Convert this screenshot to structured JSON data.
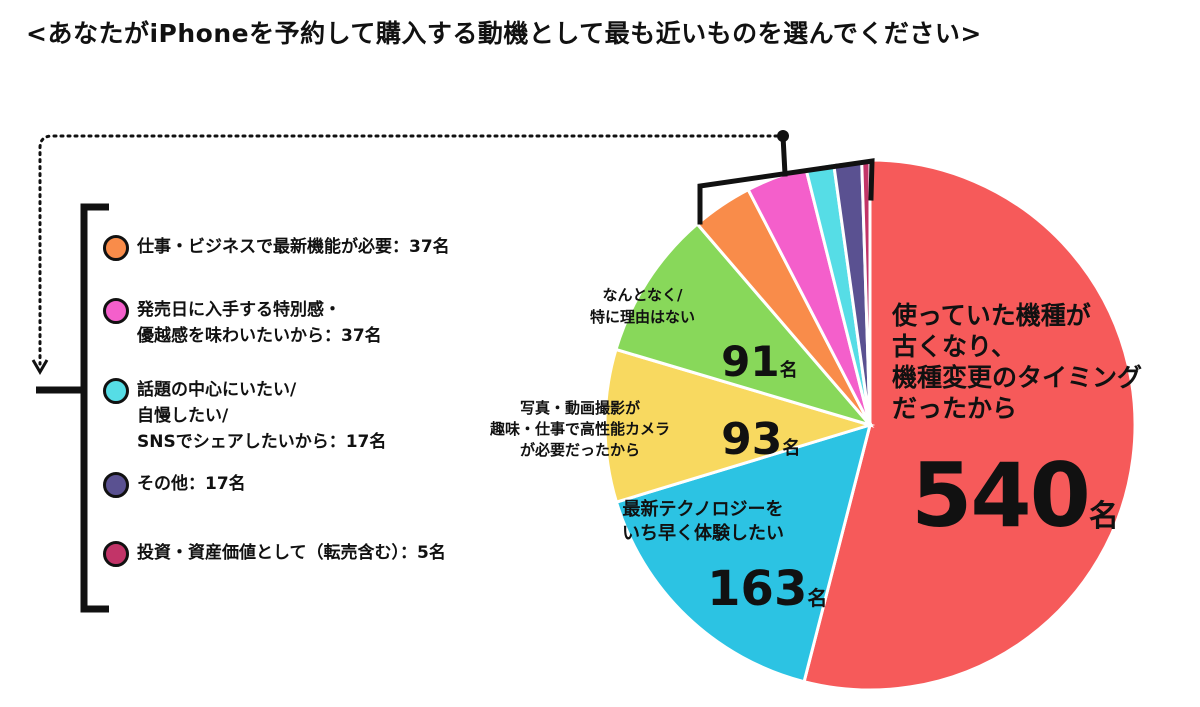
{
  "title": "<あなたがiPhoneを予約して購入する動機として最も近いものを選んでください>",
  "chart_data": {
    "type": "pie",
    "title": "<あなたがiPhoneを予約して購入する動機として最も近いものを選んでください>",
    "unit": "名",
    "slices": [
      {
        "label": "使っていた機種が古くなり、機種変更のタイミングだったから",
        "value": 540,
        "color": "#f65a5a"
      },
      {
        "label": "最新テクノロジーをいち早く体験したい",
        "value": 163,
        "color": "#2cc3e3"
      },
      {
        "label": "写真・動画撮影が趣味・仕事で高性能カメラが必要だったから",
        "value": 93,
        "color": "#f8d960"
      },
      {
        "label": "なんとなく/特に理由はない",
        "value": 91,
        "color": "#88d85a"
      },
      {
        "label": "仕事・ビジネスで最新機能が必要",
        "value": 37,
        "color": "#f98c4a"
      },
      {
        "label": "発売日に入手する特別感・優越感を味わいたいから",
        "value": 37,
        "color": "#f45fcb"
      },
      {
        "label": "話題の中心にいたい/自慢したい/SNSでシェアしたいから",
        "value": 17,
        "color": "#56dde6"
      },
      {
        "label": "その他",
        "value": 17,
        "color": "#5a5191"
      },
      {
        "label": "投資・資産価値として（転売含む）",
        "value": 5,
        "color": "#c23468"
      }
    ]
  },
  "labels": {
    "s540_text": "使っていた機種が\n古くなり、\n機種変更のタイミング\nだったから",
    "s540_num": "540",
    "s163_text": "最新テクノロジーを\nいち早く体験したい",
    "s163_num": "163",
    "s93_text": "写真・動画撮影が\n趣味・仕事で高性能カメラ\nが必要だったから",
    "s93_num": "93",
    "s91_text": "なんとなく/\n特に理由はない",
    "s91_num": "91",
    "unit": "名"
  },
  "legend": [
    {
      "text": "仕事・ビジネスで最新機能が必要：37名",
      "color": "#f98c4a"
    },
    {
      "text": "発売日に入手する特別感・\n優越感を味わいたいから：37名",
      "color": "#f45fcb"
    },
    {
      "text": "話題の中心にいたい/\n自慢したい/\nSNSでシェアしたいから：17名",
      "color": "#56dde6"
    },
    {
      "text": "その他：17名",
      "color": "#5a5191"
    },
    {
      "text": "投資・資産価値として（転売含む）：5名",
      "color": "#c23468"
    }
  ]
}
